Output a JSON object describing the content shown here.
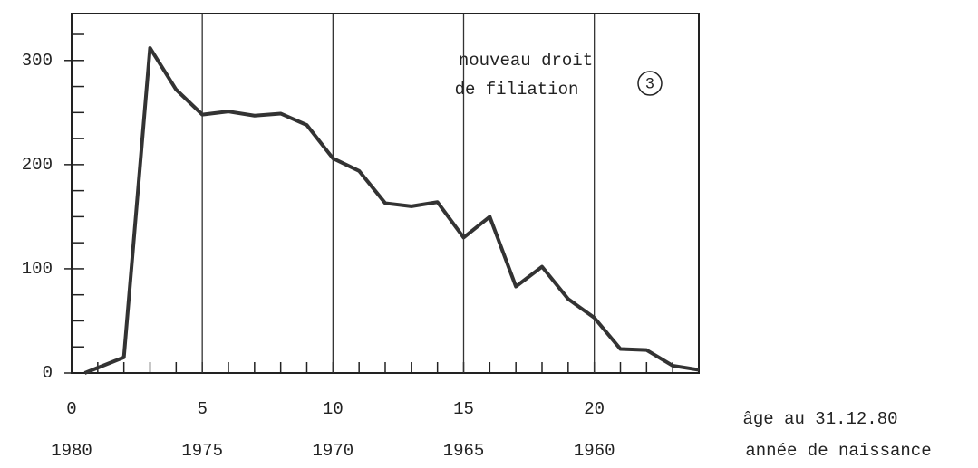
{
  "chart_data": {
    "type": "line",
    "x_axis_label": "âge au 31.12.80",
    "x2_axis_label": "année de naissance",
    "annotation": {
      "lines": [
        "nouveau droit",
        "de filiation"
      ],
      "marker": "3"
    },
    "x": [
      0.5,
      2,
      3,
      4,
      5,
      6,
      7,
      8,
      9,
      10,
      11,
      12,
      13,
      14,
      15,
      16,
      17,
      18,
      19,
      20,
      21,
      22,
      23,
      24
    ],
    "series": [
      {
        "color": "#333333",
        "values": [
          0,
          15,
          312,
          272,
          248,
          251,
          247,
          249,
          238,
          206,
          194,
          163,
          160,
          164,
          130,
          150,
          83,
          102,
          71,
          53,
          23,
          22,
          7,
          3
        ]
      }
    ],
    "xlim": [
      0,
      24
    ],
    "xticks": [
      0,
      5,
      10,
      15,
      20
    ],
    "x2ticks": [
      {
        "value": 0,
        "label": "1980"
      },
      {
        "value": 5,
        "label": "1975"
      },
      {
        "value": 10,
        "label": "1970"
      },
      {
        "value": 15,
        "label": "1965"
      },
      {
        "value": 20,
        "label": "1960"
      }
    ],
    "xminor": 1,
    "ylim": [
      0,
      345
    ],
    "yticks": [
      0,
      100,
      200,
      300
    ],
    "yminor": 25,
    "grid": "x"
  }
}
